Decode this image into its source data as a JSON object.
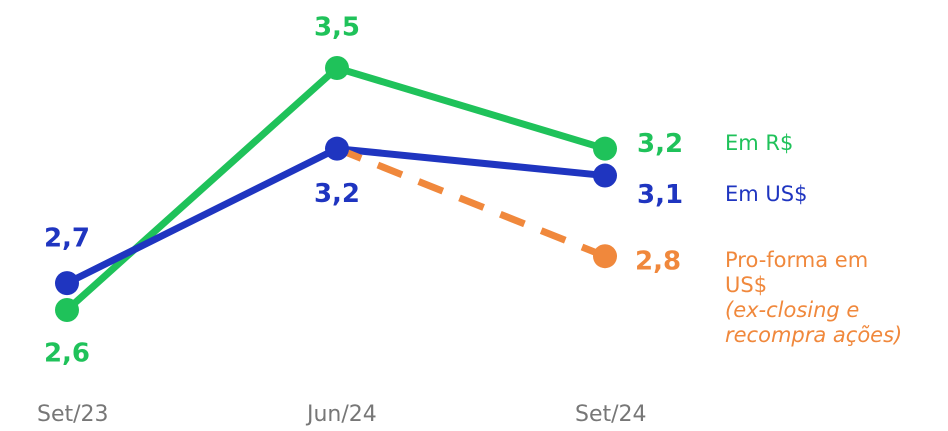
{
  "chart_data": {
    "type": "line",
    "categories": [
      "Set/23",
      "Jun/24",
      "Set/24"
    ],
    "series": [
      {
        "name": "Em R$",
        "color": "#1fc25a",
        "values": [
          2.6,
          3.5,
          3.2
        ],
        "value_labels": [
          "2,6",
          "3,5",
          "3,2"
        ]
      },
      {
        "name": "Em US$",
        "color": "#1f35c0",
        "values": [
          2.7,
          3.2,
          3.1
        ],
        "value_labels": [
          "2,7",
          "3,2",
          "3,1"
        ]
      },
      {
        "name": "Pro-forma em US$",
        "color": "#f0883c",
        "dashed": true,
        "note": "(ex-closing e recompra ações)",
        "values": [
          null,
          3.2,
          2.8
        ],
        "value_labels": [
          null,
          null,
          "2,8"
        ]
      }
    ]
  }
}
